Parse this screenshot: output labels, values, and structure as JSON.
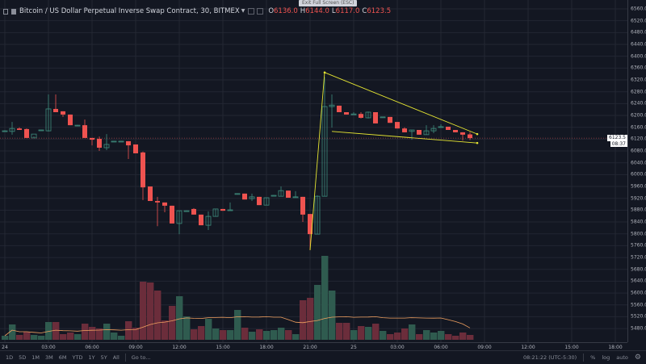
{
  "header": {
    "title": "Bitcoin / US Dollar Perpetual Inverse Swap Contract, 30, BITMEX",
    "ohlc": [
      {
        "key": "O",
        "value": "6136.0"
      },
      {
        "key": "H",
        "value": "6144.0"
      },
      {
        "key": "L",
        "value": "6117.0"
      },
      {
        "key": "C",
        "value": "6123.5"
      }
    ],
    "tooltip": "Exit Full Screen (ESC)"
  },
  "icons": {
    "collapse": "collapse-icon",
    "symbol": "symbol-square-icon",
    "caret": "caret-down-icon",
    "settings": "gear-icon"
  },
  "colors": {
    "background": "#131722",
    "up": "#3f8f7f",
    "down": "#ef5350",
    "volume_up": "#2f5b4f",
    "volume_down": "#6b2d3b",
    "volume_ma": "#f0a060",
    "trendline": "#e6e632",
    "grid": "#232733"
  },
  "price_axis": {
    "labels": [
      "6560.0",
      "6520.0",
      "6480.0",
      "6440.0",
      "6400.0",
      "6360.0",
      "6320.0",
      "6280.0",
      "6240.0",
      "6200.0",
      "6160.0",
      "6120.0",
      "6080.0",
      "6040.0",
      "6000.0",
      "5960.0",
      "5920.0",
      "5880.0",
      "5840.0",
      "5800.0",
      "5760.0",
      "5720.0",
      "5680.0",
      "5640.0",
      "5600.0",
      "5560.0",
      "5520.0",
      "5480.0"
    ],
    "current_price": "6123.5",
    "countdown": "08:37"
  },
  "time_axis": {
    "labels": [
      "24",
      "03:00",
      "06:00",
      "09:00",
      "12:00",
      "15:00",
      "18:00",
      "21:00",
      "25",
      "03:00",
      "06:00",
      "09:00",
      "12:00",
      "15:00",
      "18:00"
    ]
  },
  "chart_data": {
    "type": "candlestick",
    "symbol": "Bitcoin / US Dollar Perpetual Inverse Swap Contract",
    "interval": "30",
    "exchange": "BITMEX",
    "ylim": [
      5460,
      6580
    ],
    "grid": true,
    "start": "24 00:00",
    "ohlc": [
      [
        6148,
        6150,
        6146,
        6148
      ],
      [
        6146,
        6178,
        6135,
        6156
      ],
      [
        6156,
        6160,
        6151,
        6151
      ],
      [
        6154,
        6156,
        6124,
        6124
      ],
      [
        6124,
        6130,
        6124,
        6137
      ],
      [
        6151,
        6152,
        6150,
        6151
      ],
      [
        6148,
        6271,
        6146,
        6222
      ],
      [
        6222,
        6271,
        6211,
        6211
      ],
      [
        6214,
        6214,
        6195,
        6203
      ],
      [
        6203,
        6203,
        6167,
        6167
      ],
      [
        6167,
        6168,
        6165,
        6167
      ],
      [
        6167,
        6186,
        6124,
        6124
      ],
      [
        6124,
        6124,
        6099,
        6118
      ],
      [
        6121,
        6129,
        6080,
        6091
      ],
      [
        6091,
        6137,
        6083,
        6102
      ],
      [
        6113,
        6114,
        6112,
        6113
      ],
      [
        6113,
        6114,
        6112,
        6113
      ],
      [
        6113,
        6113,
        6053,
        6099
      ],
      [
        6102,
        6102,
        6072,
        6072
      ],
      [
        6075,
        6078,
        5914,
        5957
      ],
      [
        5960,
        5960,
        5911,
        5911
      ],
      [
        5911,
        5925,
        5826,
        5906
      ],
      [
        5906,
        5906,
        5873,
        5895
      ],
      [
        5895,
        5895,
        5835,
        5835
      ],
      [
        5835,
        5878,
        5799,
        5878
      ],
      [
        5878,
        5879,
        5877,
        5878
      ],
      [
        5884,
        5887,
        5865,
        5865
      ],
      [
        5865,
        5865,
        5829,
        5829
      ],
      [
        5829,
        5876,
        5813,
        5859
      ],
      [
        5859,
        5884,
        5859,
        5884
      ],
      [
        5884,
        5884,
        5878,
        5878
      ],
      [
        5881,
        5906,
        5879,
        5881
      ],
      [
        5936,
        5937,
        5935,
        5936
      ],
      [
        5936,
        5936,
        5916,
        5916
      ],
      [
        5919,
        5936,
        5911,
        5925
      ],
      [
        5925,
        5925,
        5897,
        5897
      ],
      [
        5897,
        5922,
        5897,
        5922
      ],
      [
        5930,
        5931,
        5929,
        5930
      ],
      [
        5927,
        5960,
        5927,
        5946
      ],
      [
        5946,
        5946,
        5922,
        5922
      ],
      [
        5925,
        5944,
        5924,
        5925
      ],
      [
        5925,
        5925,
        5840,
        5865
      ],
      [
        5867,
        5867,
        5745,
        5799
      ],
      [
        5799,
        5930,
        5799,
        5927
      ],
      [
        5927,
        6330,
        5927,
        6230
      ],
      [
        6230,
        6271,
        6159,
        6235
      ],
      [
        6233,
        6233,
        6211,
        6211
      ],
      [
        6211,
        6211,
        6203,
        6203
      ],
      [
        6205,
        6211,
        6204,
        6205
      ],
      [
        6205,
        6211,
        6190,
        6192
      ],
      [
        6192,
        6213,
        6190,
        6211
      ],
      [
        6211,
        6211,
        6173,
        6173
      ],
      [
        6195,
        6196,
        6194,
        6195
      ],
      [
        6195,
        6195,
        6175,
        6175
      ],
      [
        6178,
        6178,
        6156,
        6156
      ],
      [
        6156,
        6160,
        6143,
        6143
      ],
      [
        6146,
        6151,
        6118,
        6151
      ],
      [
        6151,
        6151,
        6135,
        6135
      ],
      [
        6135,
        6167,
        6135,
        6148
      ],
      [
        6148,
        6167,
        6140,
        6156
      ],
      [
        6162,
        6170,
        6161,
        6162
      ],
      [
        6162,
        6162,
        6151,
        6151
      ],
      [
        6151,
        6151,
        6143,
        6143
      ],
      [
        6143,
        6143,
        6115,
        6135
      ],
      [
        6136,
        6144,
        6117,
        6123.5
      ]
    ],
    "volume": [
      5,
      19,
      6,
      10,
      6,
      5,
      22,
      22,
      7,
      9,
      7,
      20,
      16,
      14,
      20,
      9,
      5,
      23,
      15,
      72,
      71,
      61,
      24,
      42,
      54,
      29,
      13,
      17,
      26,
      14,
      12,
      12,
      37,
      15,
      10,
      13,
      11,
      12,
      15,
      12,
      7,
      49,
      52,
      68,
      104,
      61,
      21,
      21,
      12,
      17,
      16,
      20,
      11,
      7,
      9,
      14,
      19,
      7,
      12,
      9,
      11,
      7,
      5,
      9,
      6
    ],
    "volume_ma_period": 20,
    "trendlines": [
      {
        "from": {
          "bar": 42,
          "price": 5745
        },
        "to": {
          "bar": 44,
          "price": 6345
        }
      },
      {
        "from": {
          "bar": 44,
          "price": 6345
        },
        "to": {
          "bar": 65,
          "price": 6137
        }
      },
      {
        "from": {
          "bar": 45,
          "price": 6146
        },
        "to": {
          "bar": 65,
          "price": 6107
        }
      }
    ]
  },
  "toolbar": {
    "ranges": [
      "1D",
      "5D",
      "1M",
      "3M",
      "6M",
      "YTD",
      "1Y",
      "5Y",
      "All"
    ],
    "goto": "Go to...",
    "clock": "08:21:22 (UTC-5:30)",
    "percent": "%",
    "log": "log",
    "auto": "auto"
  }
}
